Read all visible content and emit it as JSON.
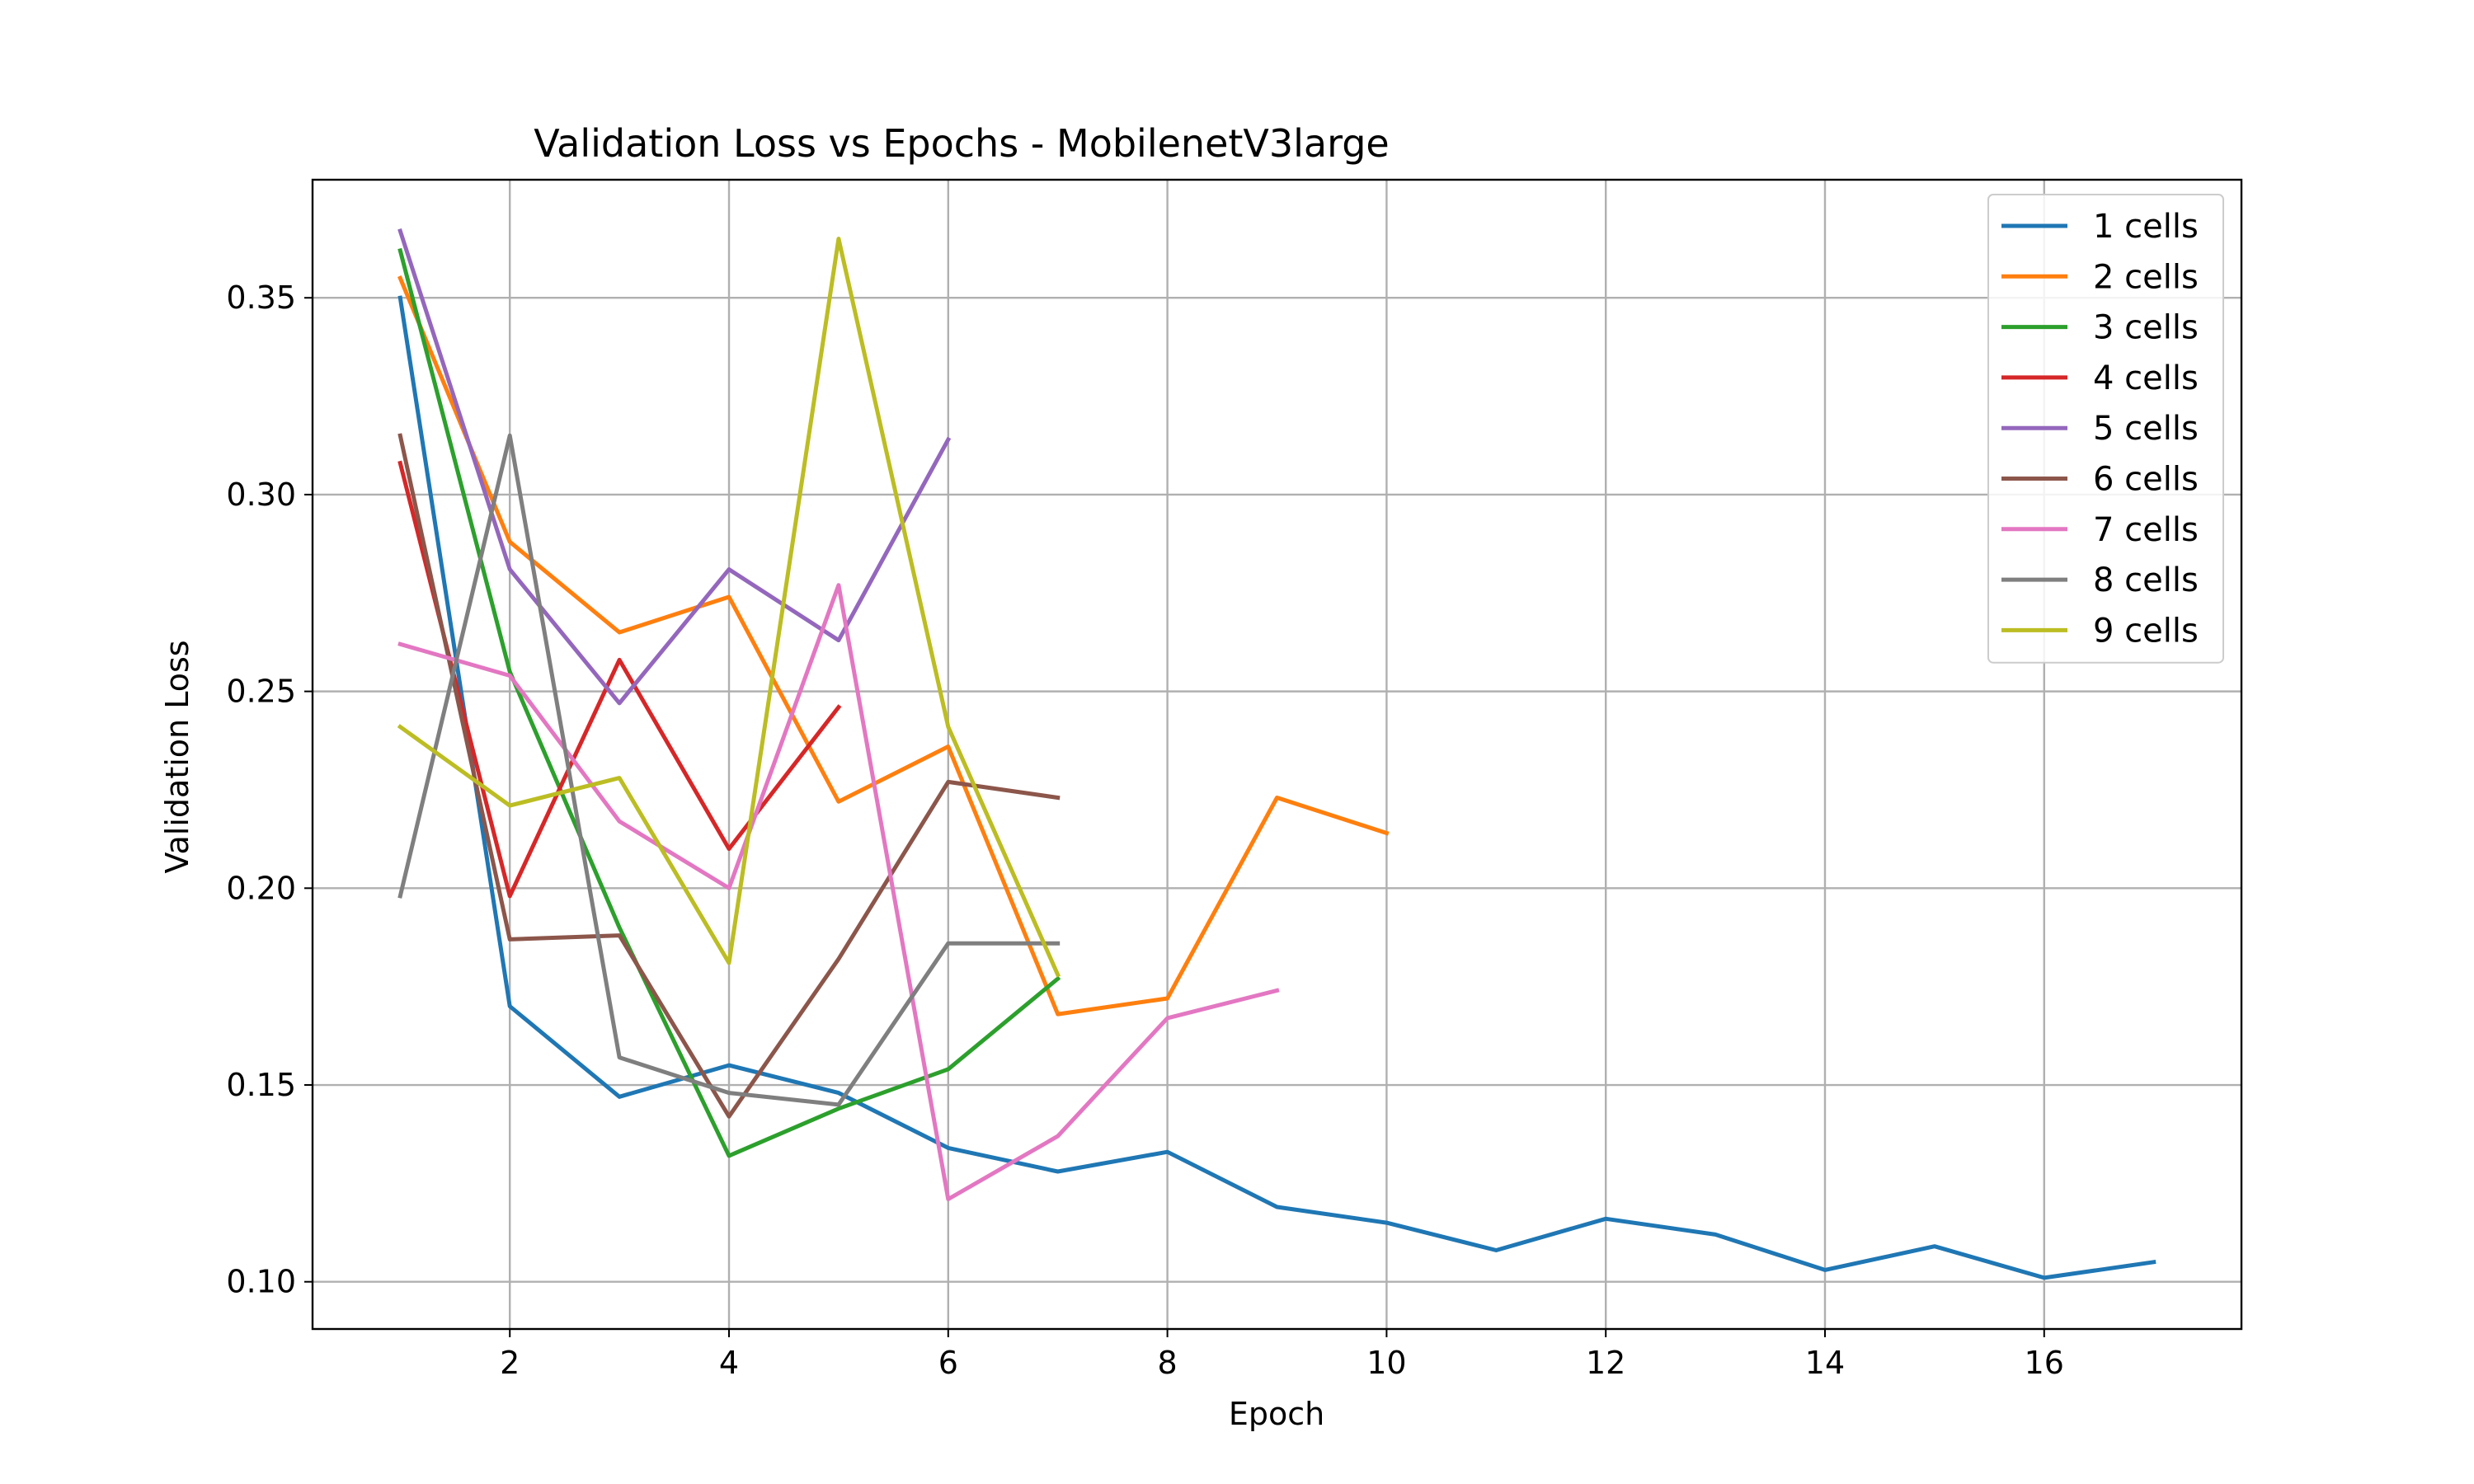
{
  "chart_data": {
    "type": "line",
    "title": "Validation Loss vs Epochs - MobilenetV3large",
    "xlabel": "Epoch",
    "ylabel": "Validation Loss",
    "xlim": [
      0.2,
      17.8
    ],
    "ylim": [
      0.088,
      0.38
    ],
    "xticks": [
      2,
      4,
      6,
      8,
      10,
      12,
      14,
      16
    ],
    "xtick_labels": [
      "2",
      "4",
      "6",
      "8",
      "10",
      "12",
      "14",
      "16"
    ],
    "yticks": [
      0.1,
      0.15,
      0.2,
      0.25,
      0.3,
      0.35
    ],
    "ytick_labels": [
      "0.10",
      "0.15",
      "0.20",
      "0.25",
      "0.30",
      "0.35"
    ],
    "grid": true,
    "legend_position": "upper right",
    "series": [
      {
        "name": "1 cells",
        "color": "#1f77b4",
        "x": [
          1,
          2,
          3,
          4,
          5,
          6,
          7,
          8,
          9,
          10,
          11,
          12,
          13,
          14,
          15,
          16,
          17
        ],
        "y": [
          0.35,
          0.17,
          0.147,
          0.155,
          0.148,
          0.134,
          0.128,
          0.133,
          0.119,
          0.115,
          0.108,
          0.116,
          0.112,
          0.103,
          0.109,
          0.101,
          0.105
        ]
      },
      {
        "name": "2 cells",
        "color": "#ff7f0e",
        "x": [
          1,
          2,
          3,
          4,
          5,
          6,
          7,
          8,
          9,
          10
        ],
        "y": [
          0.355,
          0.288,
          0.265,
          0.274,
          0.222,
          0.236,
          0.168,
          0.172,
          0.223,
          0.214
        ]
      },
      {
        "name": "3 cells",
        "color": "#2ca02c",
        "x": [
          1,
          2,
          3,
          4,
          5,
          6,
          7
        ],
        "y": [
          0.362,
          0.255,
          0.19,
          0.132,
          0.144,
          0.154,
          0.177
        ]
      },
      {
        "name": "4 cells",
        "color": "#d62728",
        "x": [
          1,
          2,
          3,
          4,
          5
        ],
        "y": [
          0.308,
          0.198,
          0.258,
          0.21,
          0.246
        ]
      },
      {
        "name": "5 cells",
        "color": "#9467bd",
        "x": [
          1,
          2,
          3,
          4,
          5,
          6
        ],
        "y": [
          0.367,
          0.281,
          0.247,
          0.281,
          0.263,
          0.314
        ]
      },
      {
        "name": "6 cells",
        "color": "#8c564b",
        "x": [
          1,
          2,
          3,
          4,
          5,
          6,
          7
        ],
        "y": [
          0.315,
          0.187,
          0.188,
          0.142,
          0.182,
          0.227,
          0.223
        ]
      },
      {
        "name": "7 cells",
        "color": "#e377c2",
        "x": [
          1,
          2,
          3,
          4,
          5,
          6,
          7,
          8,
          9
        ],
        "y": [
          0.262,
          0.254,
          0.217,
          0.2,
          0.277,
          0.121,
          0.137,
          0.167,
          0.174
        ]
      },
      {
        "name": "8 cells",
        "color": "#7f7f7f",
        "x": [
          1,
          2,
          3,
          4,
          5,
          6,
          7
        ],
        "y": [
          0.198,
          0.315,
          0.157,
          0.148,
          0.145,
          0.186,
          0.186
        ]
      },
      {
        "name": "9 cells",
        "color": "#bcbd22",
        "x": [
          1,
          2,
          3,
          4,
          5,
          6,
          7
        ],
        "y": [
          0.241,
          0.221,
          0.228,
          0.181,
          0.365,
          0.241,
          0.178
        ]
      }
    ]
  }
}
